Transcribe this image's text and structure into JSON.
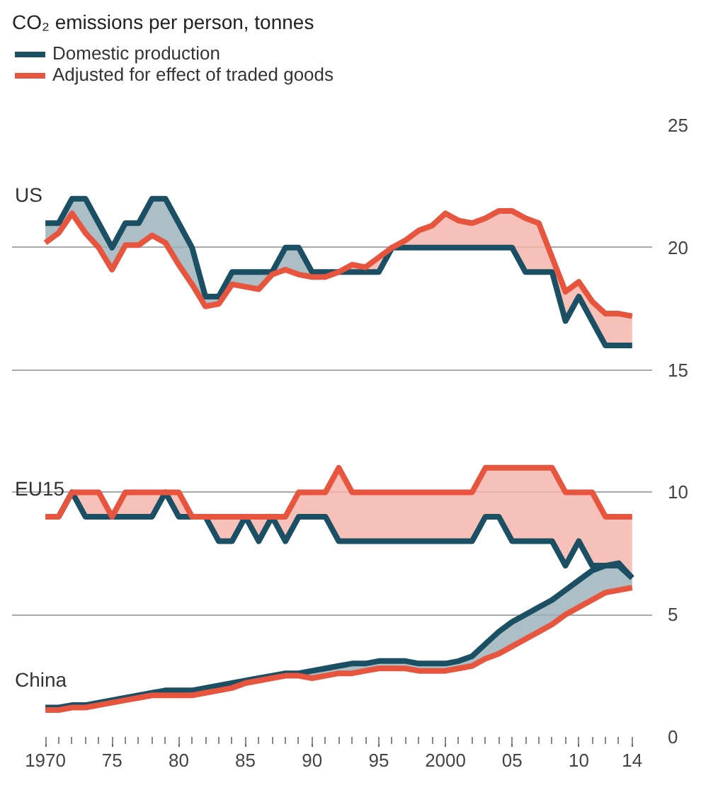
{
  "chart_data": {
    "type": "line",
    "title": "CO₂ emissions per person, tonnes",
    "x": [
      1970,
      1971,
      1972,
      1973,
      1974,
      1975,
      1976,
      1977,
      1978,
      1979,
      1980,
      1981,
      1982,
      1983,
      1984,
      1985,
      1986,
      1987,
      1988,
      1989,
      1990,
      1991,
      1992,
      1993,
      1994,
      1995,
      1996,
      1997,
      1998,
      1999,
      2000,
      2001,
      2002,
      2003,
      2004,
      2005,
      2006,
      2007,
      2008,
      2009,
      2010,
      2011,
      2012,
      2013,
      2014
    ],
    "series": [
      {
        "name": "Domestic production",
        "color": "#1b4f63",
        "values": [
          21,
          21,
          22,
          22,
          21,
          20,
          21,
          21,
          22,
          22,
          21,
          20,
          18,
          18,
          19,
          19,
          19,
          19,
          20,
          20,
          19,
          19,
          19,
          19,
          19,
          19,
          20,
          20,
          20,
          20,
          20,
          20,
          20,
          20,
          20,
          20,
          19,
          19,
          19,
          17,
          18,
          17,
          16,
          16,
          16
        ],
        "lower": [
          20.2,
          20.6,
          21.4,
          20.6,
          20,
          19.1,
          20.1,
          20.1,
          20.5,
          20.2,
          19.3,
          18.5,
          17.6,
          17.7,
          18.5,
          18.4,
          18.3,
          18.9,
          19.1,
          18.9,
          18.8,
          18.8,
          19,
          null,
          null,
          null,
          null,
          null,
          null,
          null,
          null,
          null,
          null,
          null,
          null,
          null,
          null,
          null,
          null,
          null,
          null,
          null,
          null,
          null,
          null
        ],
        "upper": [
          21,
          21,
          22,
          22,
          21,
          20,
          21,
          21,
          22,
          22,
          21,
          20,
          18,
          18,
          19,
          19,
          19,
          19,
          20,
          20,
          19,
          19,
          19,
          null,
          null,
          null,
          null,
          null,
          null,
          null,
          null,
          null,
          null,
          null,
          null,
          null,
          null,
          null,
          null,
          null,
          null,
          null,
          null,
          null,
          null
        ]
      },
      {
        "name": "Adjusted for effect of traded goods",
        "color": "#e8553e",
        "values": [
          20.2,
          20.6,
          21.4,
          20.6,
          20,
          19.1,
          20.1,
          20.1,
          20.5,
          20.2,
          19.3,
          18.5,
          17.6,
          17.7,
          18.5,
          18.4,
          18.3,
          18.9,
          19.1,
          18.9,
          18.8,
          18.8,
          19,
          19.3,
          19.2,
          19.6,
          20,
          20.3,
          20.7,
          20.9,
          21.4,
          21.1,
          21,
          21.2,
          21.5,
          21.5,
          21.2,
          21,
          19.6,
          18.2,
          18.6,
          17.8,
          17.3,
          17.3,
          17.2
        ],
        "lower": [
          null,
          null,
          null,
          null,
          null,
          null,
          null,
          null,
          null,
          null,
          null,
          null,
          null,
          null,
          null,
          null,
          null,
          null,
          null,
          null,
          null,
          null,
          19,
          19,
          19,
          19,
          20,
          20,
          20,
          20,
          20,
          20,
          20,
          20,
          20,
          20,
          19,
          19,
          19,
          17,
          18,
          17,
          16,
          16,
          16
        ],
        "upper": [
          null,
          null,
          null,
          null,
          null,
          null,
          null,
          null,
          null,
          null,
          null,
          null,
          null,
          null,
          null,
          null,
          null,
          null,
          null,
          null,
          null,
          null,
          19,
          19.3,
          19.2,
          19.6,
          20,
          20.3,
          20.7,
          20.9,
          21.4,
          21.1,
          21,
          21.2,
          21.5,
          21.5,
          21.2,
          21,
          19.6,
          18.2,
          18.6,
          17.8,
          17.3,
          17.3,
          17.2
        ]
      },
      {
        "color": "#1b4f63",
        "values": [
          9,
          9,
          10,
          9,
          9,
          9,
          9,
          9,
          9,
          10,
          9,
          9,
          9,
          8,
          8,
          9,
          8,
          9,
          8,
          9,
          9,
          9,
          8,
          8,
          8,
          8,
          8,
          8,
          8,
          8,
          8,
          8,
          8,
          9,
          9,
          8,
          8,
          8,
          8,
          7,
          8,
          7,
          7,
          7,
          6.5
        ]
      },
      {
        "color": "#e8553e",
        "values": [
          9,
          9,
          10,
          10,
          10,
          9,
          10,
          10,
          10,
          10,
          10,
          9,
          9,
          9,
          9,
          9,
          9,
          9,
          9,
          10,
          10,
          10,
          11,
          10,
          10,
          10,
          10,
          10,
          10,
          10,
          10,
          10,
          10,
          11,
          11,
          11,
          11,
          11,
          11,
          10,
          10,
          10,
          9,
          9,
          9
        ],
        "lower": [
          9,
          9,
          10,
          9,
          9,
          9,
          9,
          9,
          9,
          10,
          9,
          9,
          9,
          8,
          8,
          9,
          8,
          9,
          8,
          9,
          9,
          9,
          8,
          8,
          8,
          8,
          8,
          8,
          8,
          8,
          8,
          8,
          8,
          9,
          9,
          8,
          8,
          8,
          8,
          7,
          8,
          7,
          7,
          7,
          6.5
        ],
        "upper": [
          9,
          9,
          10,
          10,
          10,
          9,
          10,
          10,
          10,
          10,
          10,
          9,
          9,
          9,
          9,
          9,
          9,
          9,
          9,
          10,
          10,
          10,
          11,
          10,
          10,
          10,
          10,
          10,
          10,
          10,
          10,
          10,
          10,
          11,
          11,
          11,
          11,
          11,
          11,
          10,
          10,
          10,
          9,
          9,
          9
        ]
      },
      {
        "color": "#1b4f63",
        "values": [
          1.2,
          1.2,
          1.3,
          1.3,
          1.4,
          1.5,
          1.6,
          1.7,
          1.8,
          1.9,
          1.9,
          1.9,
          2.0,
          2.1,
          2.2,
          2.3,
          2.4,
          2.5,
          2.6,
          2.6,
          2.7,
          2.8,
          2.9,
          3.0,
          3.0,
          3.1,
          3.1,
          3.1,
          3.0,
          3.0,
          3.0,
          3.1,
          3.3,
          3.8,
          4.3,
          4.7,
          5.0,
          5.3,
          5.6,
          6.0,
          6.4,
          6.8,
          7.0,
          7.1,
          6.5
        ],
        "lower": [
          1.1,
          1.1,
          1.2,
          1.2,
          1.3,
          1.4,
          1.5,
          1.6,
          1.7,
          1.7,
          1.7,
          1.7,
          1.8,
          1.9,
          2.0,
          2.2,
          2.3,
          2.4,
          2.5,
          2.5,
          2.4,
          2.5,
          2.6,
          2.6,
          2.7,
          2.8,
          2.8,
          2.8,
          2.7,
          2.7,
          2.7,
          2.8,
          2.9,
          3.2,
          3.4,
          3.7,
          4.0,
          4.3,
          4.6,
          5.0,
          5.3,
          5.6,
          5.9,
          6.0,
          6.1
        ],
        "upper": [
          1.2,
          1.2,
          1.3,
          1.3,
          1.4,
          1.5,
          1.6,
          1.7,
          1.8,
          1.9,
          1.9,
          1.9,
          2.0,
          2.1,
          2.2,
          2.3,
          2.4,
          2.5,
          2.6,
          2.6,
          2.7,
          2.8,
          2.9,
          3.0,
          3.0,
          3.1,
          3.1,
          3.1,
          3.0,
          3.0,
          3.0,
          3.1,
          3.3,
          3.8,
          4.3,
          4.7,
          5.0,
          5.3,
          5.6,
          6.0,
          6.4,
          6.8,
          7.0,
          7.1,
          6.5
        ]
      },
      {
        "color": "#e8553e",
        "values": [
          1.1,
          1.1,
          1.2,
          1.2,
          1.3,
          1.4,
          1.5,
          1.6,
          1.7,
          1.7,
          1.7,
          1.7,
          1.8,
          1.9,
          2.0,
          2.2,
          2.3,
          2.4,
          2.5,
          2.5,
          2.4,
          2.5,
          2.6,
          2.6,
          2.7,
          2.8,
          2.8,
          2.8,
          2.7,
          2.7,
          2.7,
          2.8,
          2.9,
          3.2,
          3.4,
          3.7,
          4.0,
          4.3,
          4.6,
          5.0,
          5.3,
          5.6,
          5.9,
          6.0,
          6.1
        ]
      }
    ],
    "annotations": [
      "US",
      "EU15",
      "China"
    ],
    "xlim": [
      1967.5,
      2015.5
    ],
    "ylim": [
      0,
      25
    ],
    "xticks": [
      1970,
      {
        "value": 1975,
        "label": "75"
      },
      {
        "value": 1980,
        "label": "80"
      },
      {
        "value": 1985,
        "label": "85"
      },
      {
        "value": 1990,
        "label": "90"
      },
      {
        "value": 1995,
        "label": "95"
      },
      2000,
      {
        "value": 2005,
        "label": "05"
      },
      {
        "value": 2010,
        "label": "10"
      },
      {
        "value": 2014,
        "label": "14"
      }
    ],
    "yticks": [
      0,
      5,
      10,
      15,
      20,
      25
    ],
    "grid": "y",
    "legend": "top left",
    "line_style": "solid"
  }
}
